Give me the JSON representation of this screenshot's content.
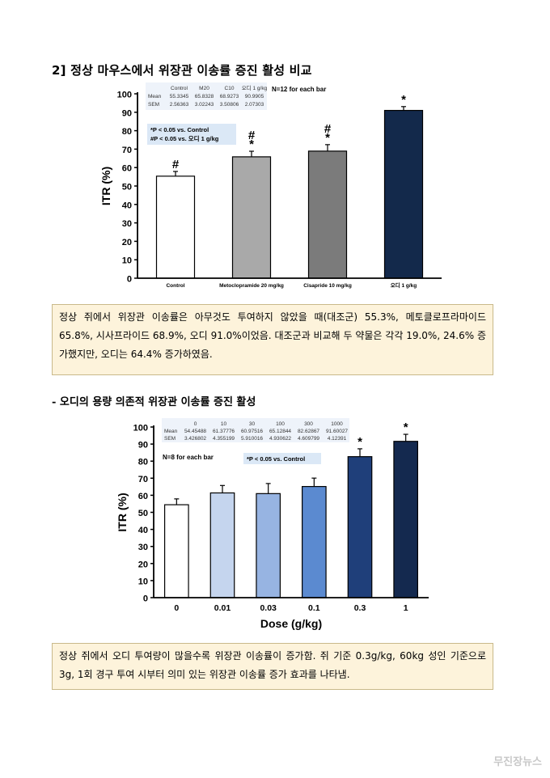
{
  "section1": {
    "heading": "2] 정상 마우스에서 위장관 이송률 증진 활성 비교",
    "summary": "정상 쥐에서 위장관 이송률은 아무것도 투여하지 않았을 때(대조군) 55.3%, 메토클로프라마이드 65.8%, 시사프라이드 68.9%, 오디 91.0%이었음. 대조군과 비교해 두 약물은 각각 19.0%, 24.6% 증가했지만, 오디는 64.4% 증가하였음."
  },
  "section2": {
    "heading": "- 오디의 용량 의존적 위장관 이송률 증진 활성",
    "summary": "정상 쥐에서 오디 투여량이 많을수록 위장관 이송률이 증가함. 쥐 기준 0.3g/kg, 60kg 성인 기준으로 3g, 1회 경구 투여 시부터 의미 있는 위장관 이송률 증가 효과를 나타냄."
  },
  "watermark": "무진장뉴스",
  "chart_data": [
    {
      "type": "bar",
      "categories": [
        "Control",
        "Metoclopramide 20 mg/kg",
        "Cisapride 10 mg/kg",
        "오디 1 g/kg"
      ],
      "values": [
        55.3345,
        65.8328,
        68.9273,
        90.9905
      ],
      "errors": [
        2.56363,
        3.02243,
        3.50806,
        2.07303
      ],
      "bar_colors": [
        "#ffffff",
        "#a9a9a9",
        "#7b7b7b",
        "#13294b"
      ],
      "bar_marks": [
        [
          "#"
        ],
        [
          "*",
          "#"
        ],
        [
          "*",
          "#"
        ],
        [
          "*"
        ]
      ],
      "ylabel": "ITR (%)",
      "xlabel": "",
      "ylim": [
        0,
        100
      ],
      "yticks": [
        "0",
        "10",
        "20",
        "30",
        "40",
        "50",
        "60",
        "70",
        "80",
        "90",
        "100"
      ],
      "table": {
        "header": [
          "",
          "Control",
          "M20",
          "C10",
          "오디 1 g/kg"
        ],
        "rows": [
          [
            "Mean",
            "55.3345",
            "65.8328",
            "68.9273",
            "90.9905"
          ],
          [
            "SEM",
            "2.56363",
            "3.02243",
            "3.50806",
            "2.07303"
          ]
        ]
      },
      "n_note": "N=12 for each bar",
      "legend": [
        "*P < 0.05 vs. Control",
        "#P < 0.05 vs. 오디 1 g/kg"
      ]
    },
    {
      "type": "bar",
      "categories": [
        "0",
        "0.01",
        "0.03",
        "0.1",
        "0.3",
        "1"
      ],
      "values": [
        54.45488,
        61.37776,
        60.97516,
        65.12844,
        82.62867,
        91.60027
      ],
      "errors": [
        3.426802,
        4.355199,
        5.910016,
        4.930622,
        4.609799,
        4.12391
      ],
      "bar_colors": [
        "#ffffff",
        "#c5d5ee",
        "#97b4e2",
        "#5b8ad0",
        "#1f3f7a",
        "#14294f"
      ],
      "bar_marks": [
        [],
        [],
        [],
        [],
        [
          "*"
        ],
        [
          "*"
        ]
      ],
      "ylabel": "ITR (%)",
      "xlabel": "Dose (g/kg)",
      "ylim": [
        0,
        100
      ],
      "yticks": [
        "0",
        "10",
        "20",
        "30",
        "40",
        "50",
        "60",
        "70",
        "80",
        "90",
        "100"
      ],
      "table": {
        "header": [
          "",
          "0",
          "10",
          "30",
          "100",
          "300",
          "1000"
        ],
        "rows": [
          [
            "Mean",
            "54.45488",
            "61.37776",
            "60.97516",
            "65.12844",
            "82.62867",
            "91.60027"
          ],
          [
            "SEM",
            "3.426802",
            "4.355199",
            "5.910016",
            "4.930622",
            "4.609799",
            "4.12391"
          ]
        ]
      },
      "n_note": "N=8 for each bar",
      "legend": [
        "*P < 0.05 vs. Control"
      ]
    }
  ]
}
